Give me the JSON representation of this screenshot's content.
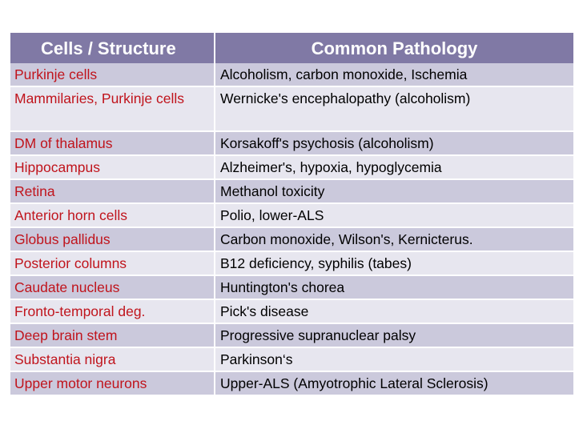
{
  "header": {
    "col1": "Cells / Structure",
    "col2": "Common Pathology"
  },
  "colors": {
    "header_bg": "#8079a5",
    "row_dark": "#cbc9dc",
    "row_light": "#e7e6ef",
    "cell_text": "#c0141c",
    "pathology_text": "#000000"
  },
  "rows": [
    {
      "cell": "Purkinje cells",
      "pathology": "Alcoholism, carbon monoxide, Ischemia"
    },
    {
      "cell": "Mammilaries, Purkinje cells",
      "pathology": "Wernicke's encephalopathy (alcoholism)"
    },
    {
      "cell": "DM of thalamus",
      "pathology": "Korsakoff's psychosis (alcoholism)"
    },
    {
      "cell": "Hippocampus",
      "pathology": "Alzheimer's, hypoxia, hypoglycemia"
    },
    {
      "cell": "Retina",
      "pathology": "Methanol toxicity"
    },
    {
      "cell": "Anterior horn cells",
      "pathology": "Polio, lower-ALS"
    },
    {
      "cell": "Globus pallidus",
      "pathology": "Carbon monoxide, Wilson's, Kernicterus."
    },
    {
      "cell": "Posterior columns",
      "pathology": "B12 deficiency, syphilis (tabes)"
    },
    {
      "cell": "Caudate nucleus",
      "pathology": "Huntington's chorea"
    },
    {
      "cell": "Fronto-temporal deg.",
      "pathology": "Pick's disease"
    },
    {
      "cell": "Deep brain stem",
      "pathology": "Progressive supranuclear palsy"
    },
    {
      "cell": "Substantia nigra",
      "pathology": "Parkinson‘s"
    },
    {
      "cell": "Upper motor neurons",
      "pathology": "Upper-ALS (Amyotrophic Lateral Sclerosis)"
    }
  ]
}
